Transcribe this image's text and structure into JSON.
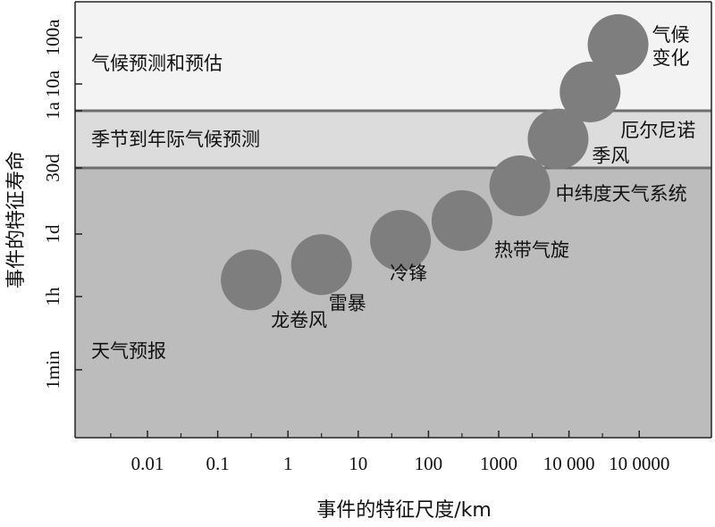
{
  "chart_data": {
    "type": "scatter",
    "xlabel": "事件的特征尺度/km",
    "ylabel": "事件的特征寿命",
    "x_scale": "log",
    "y_scale": "log",
    "x_ticks": [
      {
        "value": 0.01,
        "label": "0.01"
      },
      {
        "value": 0.1,
        "label": "0.1"
      },
      {
        "value": 1,
        "label": "1"
      },
      {
        "value": 10,
        "label": "10"
      },
      {
        "value": 100,
        "label": "100"
      },
      {
        "value": 1000,
        "label": "1000"
      },
      {
        "value": 10000,
        "label": "10 000"
      },
      {
        "value": 100000,
        "label": "10 0000"
      }
    ],
    "y_ticks": [
      {
        "value": "1min",
        "label": "1min"
      },
      {
        "value": "1h",
        "label": "1h"
      },
      {
        "value": "1d",
        "label": "1d"
      },
      {
        "value": "30d",
        "label": "30d"
      },
      {
        "value": "1a",
        "label": "1a"
      },
      {
        "value": "10a",
        "label": "10a"
      },
      {
        "value": "100a",
        "label": "100a"
      }
    ],
    "bands": [
      {
        "label": "天气预报",
        "y_from": null,
        "y_to": "30d",
        "color": "#bcbcbc"
      },
      {
        "label": "季节到年际气候预测",
        "y_from": "30d",
        "y_to": "1a",
        "color": "#dcdcdc"
      },
      {
        "label": "气候预测和预估",
        "y_from": "1a",
        "y_to": null,
        "color": "#f3f3f3"
      }
    ],
    "points": [
      {
        "label": "龙卷风",
        "x_km": 0.3,
        "lifetime": "3h"
      },
      {
        "label": "雷暴",
        "x_km": 3,
        "lifetime": "6h"
      },
      {
        "label": "冷锋",
        "x_km": 40,
        "lifetime": "18h"
      },
      {
        "label": "热带气旋",
        "x_km": 300,
        "lifetime": "2d"
      },
      {
        "label": "中纬度天气系统",
        "x_km": 2000,
        "lifetime": "12d"
      },
      {
        "label": "季风",
        "x_km": 7000,
        "lifetime": "3.5mo"
      },
      {
        "label": "厄尔尼诺",
        "x_km": 20000,
        "lifetime": "5a"
      },
      {
        "label": "气候\n变化",
        "x_km": 50000,
        "lifetime": "70a"
      }
    ],
    "colors": {
      "bubble": "#7e7e7e",
      "band_divider": "#6e6e6e",
      "axis": "#222222"
    }
  }
}
